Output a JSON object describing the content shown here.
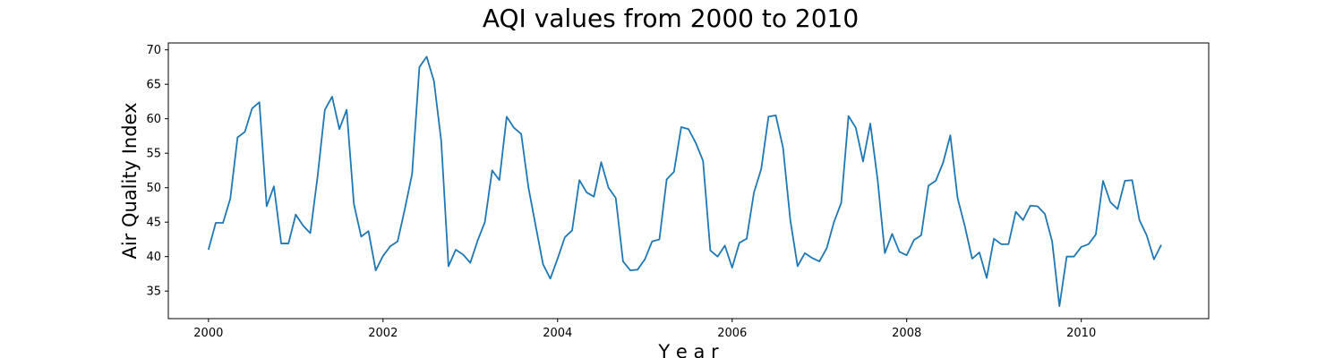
{
  "chart_data": {
    "type": "line",
    "title": "AQI values from 2000 to 2010",
    "xlabel": "Y e a r",
    "ylabel": "Air Quality Index",
    "xlim": [
      1999.54,
      2011.46
    ],
    "ylim": [
      31.0,
      71.0
    ],
    "x_ticks": [
      2000,
      2002,
      2004,
      2006,
      2008,
      2010
    ],
    "y_ticks": [
      35,
      40,
      45,
      50,
      55,
      60,
      65,
      70
    ],
    "grid": false,
    "series": [
      {
        "name": "AQI",
        "color": "#1f77b4",
        "x_start": 2000,
        "x_step": 0.08333,
        "values": [
          41.0,
          44.9,
          44.9,
          48.4,
          57.3,
          58.1,
          61.5,
          62.4,
          47.3,
          50.2,
          41.9,
          41.9,
          46.1,
          44.5,
          43.4,
          51.6,
          61.3,
          63.2,
          58.5,
          61.3,
          47.6,
          42.9,
          43.7,
          38.0,
          40.1,
          41.5,
          42.2,
          46.9,
          52.0,
          67.5,
          69.0,
          65.5,
          56.8,
          38.6,
          41.0,
          40.3,
          39.1,
          42.3,
          45.0,
          52.5,
          51.1,
          60.3,
          58.7,
          57.8,
          50.0,
          44.4,
          38.9,
          36.8,
          39.7,
          42.8,
          43.8,
          51.1,
          49.3,
          48.7,
          53.7,
          50.0,
          48.5,
          39.3,
          38.0,
          38.1,
          39.6,
          42.2,
          42.5,
          51.2,
          52.3,
          58.8,
          58.5,
          56.5,
          53.9,
          40.9,
          40.0,
          41.6,
          38.4,
          42.0,
          42.6,
          49.3,
          52.7,
          60.3,
          60.5,
          55.8,
          45.3,
          38.6,
          40.5,
          39.8,
          39.3,
          41.2,
          45.0,
          47.8,
          60.4,
          58.7,
          53.8,
          59.3,
          51.2,
          40.5,
          43.3,
          40.7,
          40.2,
          42.4,
          43.1,
          50.3,
          51.0,
          53.6,
          57.6,
          48.5,
          44.4,
          39.7,
          40.6,
          36.9,
          42.6,
          41.8,
          41.8,
          46.5,
          45.3,
          47.4,
          47.3,
          46.2,
          42.2,
          32.8,
          40.0,
          40.0,
          41.4,
          41.8,
          43.2,
          51.0,
          47.9,
          46.9,
          51.0,
          51.1,
          45.3,
          43.1,
          39.6,
          41.7
        ]
      }
    ]
  }
}
